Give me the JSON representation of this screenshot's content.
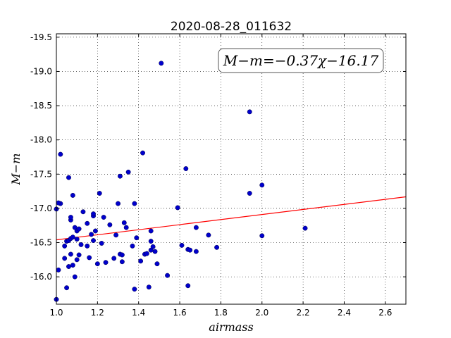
{
  "chart_data": {
    "type": "scatter",
    "title": "2020-08-28_011632",
    "xlabel": "airmass",
    "ylabel": "M−m",
    "xlim": [
      1.0,
      2.7
    ],
    "ylim": [
      -19.55,
      -15.6
    ],
    "y_inverted": true,
    "grid": true,
    "xticks": [
      "1.0",
      "1.2",
      "1.4",
      "1.6",
      "1.8",
      "2.0",
      "2.2",
      "2.4",
      "2.6"
    ],
    "yticks": [
      "-16.0",
      "-16.5",
      "-17.0",
      "-17.5",
      "-18.0",
      "-18.5",
      "-19.0",
      "-19.5"
    ],
    "annotation": "M−m=−0.37χ−16.17",
    "fit": {
      "slope": -0.37,
      "intercept": -16.17,
      "color": "#ff0000"
    },
    "marker_color": "#0000cc",
    "points": [
      [
        1.0,
        -15.67
      ],
      [
        1.01,
        -16.1
      ],
      [
        1.0,
        -16.99
      ],
      [
        1.02,
        -17.07
      ],
      [
        1.01,
        -17.08
      ],
      [
        1.02,
        -17.79
      ],
      [
        1.04,
        -16.27
      ],
      [
        1.04,
        -16.45
      ],
      [
        1.05,
        -15.84
      ],
      [
        1.05,
        -16.52
      ],
      [
        1.06,
        -16.15
      ],
      [
        1.06,
        -16.53
      ],
      [
        1.07,
        -16.33
      ],
      [
        1.08,
        -16.17
      ],
      [
        1.07,
        -16.83
      ],
      [
        1.07,
        -16.87
      ],
      [
        1.07,
        -16.56
      ],
      [
        1.08,
        -16.58
      ],
      [
        1.06,
        -17.45
      ],
      [
        1.09,
        -16.72
      ],
      [
        1.08,
        -17.19
      ],
      [
        1.09,
        -16.0
      ],
      [
        1.1,
        -16.25
      ],
      [
        1.1,
        -16.55
      ],
      [
        1.1,
        -16.67
      ],
      [
        1.11,
        -16.32
      ],
      [
        1.11,
        -16.7
      ],
      [
        1.12,
        -16.47
      ],
      [
        1.13,
        -16.95
      ],
      [
        1.15,
        -16.45
      ],
      [
        1.15,
        -16.78
      ],
      [
        1.16,
        -16.28
      ],
      [
        1.17,
        -16.62
      ],
      [
        1.18,
        -16.89
      ],
      [
        1.18,
        -16.92
      ],
      [
        1.18,
        -16.53
      ],
      [
        1.19,
        -16.67
      ],
      [
        1.2,
        -16.19
      ],
      [
        1.21,
        -17.22
      ],
      [
        1.22,
        -16.49
      ],
      [
        1.23,
        -16.87
      ],
      [
        1.24,
        -16.21
      ],
      [
        1.26,
        -16.76
      ],
      [
        1.28,
        -16.27
      ],
      [
        1.29,
        -16.61
      ],
      [
        1.3,
        -17.07
      ],
      [
        1.31,
        -16.33
      ],
      [
        1.32,
        -16.32
      ],
      [
        1.32,
        -16.22
      ],
      [
        1.33,
        -16.79
      ],
      [
        1.31,
        -17.47
      ],
      [
        1.34,
        -16.72
      ],
      [
        1.35,
        -17.53
      ],
      [
        1.37,
        -16.45
      ],
      [
        1.38,
        -15.82
      ],
      [
        1.38,
        -17.07
      ],
      [
        1.39,
        -16.57
      ],
      [
        1.41,
        -16.23
      ],
      [
        1.42,
        -17.81
      ],
      [
        1.43,
        -16.33
      ],
      [
        1.44,
        -16.34
      ],
      [
        1.45,
        -15.85
      ],
      [
        1.46,
        -16.39
      ],
      [
        1.46,
        -16.52
      ],
      [
        1.46,
        -16.67
      ],
      [
        1.47,
        -16.44
      ],
      [
        1.48,
        -16.37
      ],
      [
        1.49,
        -16.19
      ],
      [
        1.51,
        -19.12
      ],
      [
        1.54,
        -16.02
      ],
      [
        1.59,
        -17.01
      ],
      [
        1.61,
        -16.46
      ],
      [
        1.63,
        -17.58
      ],
      [
        1.64,
        -15.87
      ],
      [
        1.64,
        -16.4
      ],
      [
        1.65,
        -16.39
      ],
      [
        1.68,
        -16.37
      ],
      [
        1.68,
        -16.72
      ],
      [
        1.74,
        -16.61
      ],
      [
        1.78,
        -16.43
      ],
      [
        1.94,
        -17.22
      ],
      [
        1.94,
        -18.41
      ],
      [
        2.0,
        -17.34
      ],
      [
        2.0,
        -16.6
      ],
      [
        2.21,
        -16.71
      ]
    ]
  }
}
